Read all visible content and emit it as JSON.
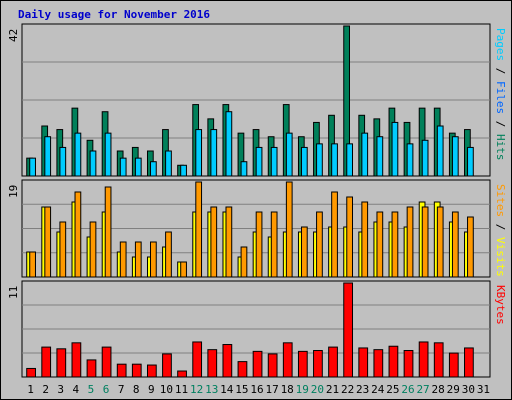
{
  "chart_data": {
    "type": "bar",
    "title": "Daily usage for November 2016",
    "categories": [
      "1",
      "2",
      "3",
      "4",
      "5",
      "6",
      "7",
      "8",
      "9",
      "10",
      "11",
      "12",
      "13",
      "14",
      "15",
      "16",
      "17",
      "18",
      "19",
      "20",
      "21",
      "22",
      "23",
      "24",
      "25",
      "26",
      "27",
      "28",
      "29",
      "30",
      "31"
    ],
    "weekend_days": [
      "5",
      "6",
      "12",
      "13",
      "19",
      "20",
      "26",
      "27"
    ],
    "colors": {
      "hits": "#00805a",
      "files": "#00ccff",
      "sites": "#ff9900",
      "visits": "#ffff00",
      "kbytes": "#ff0000",
      "title": "#0000cc",
      "weekend": "#008060",
      "weekday": "#000000"
    },
    "panels": [
      {
        "ymax_label": "42",
        "ylim": [
          0,
          42
        ],
        "legend": [
          {
            "text": "Pages",
            "color": "#00ccff"
          },
          {
            "text": " / ",
            "color": "#000000"
          },
          {
            "text": "Files",
            "color": "#0066ff"
          },
          {
            "text": " / ",
            "color": "#000000"
          },
          {
            "text": "Hits",
            "color": "#00805a"
          }
        ],
        "series": [
          {
            "key": "hits",
            "values": [
              5,
              14,
              13,
              19,
              10,
              18,
              7,
              8,
              7,
              13,
              3,
              20,
              16,
              20,
              12,
              13,
              11,
              20,
              11,
              15,
              17,
              42,
              17,
              16,
              19,
              15,
              19,
              19,
              12,
              13,
              0
            ]
          },
          {
            "key": "files",
            "values": [
              5,
              11,
              8,
              12,
              7,
              12,
              5,
              5,
              4,
              7,
              3,
              13,
              13,
              18,
              4,
              8,
              8,
              12,
              8,
              9,
              9,
              9,
              12,
              11,
              15,
              9,
              10,
              14,
              11,
              8,
              0
            ]
          }
        ]
      },
      {
        "ymax_label": "19",
        "ylim": [
          0,
          19
        ],
        "legend": [
          {
            "text": "Sites",
            "color": "#ff9900"
          },
          {
            "text": " / ",
            "color": "#000000"
          },
          {
            "text": "Visits",
            "color": "#ffff00"
          }
        ],
        "series": [
          {
            "key": "visits",
            "values": [
              5,
              14,
              9,
              15,
              8,
              13,
              5,
              4,
              4,
              6,
              3,
              13,
              13,
              13,
              4,
              9,
              8,
              9,
              9,
              9,
              10,
              10,
              9,
              11,
              11,
              10,
              15,
              15,
              11,
              9,
              0
            ]
          },
          {
            "key": "sites",
            "values": [
              5,
              14,
              11,
              17,
              11,
              18,
              7,
              7,
              7,
              9,
              3,
              19,
              14,
              14,
              6,
              13,
              13,
              19,
              10,
              13,
              17,
              16,
              15,
              13,
              13,
              14,
              14,
              14,
              13,
              12,
              0
            ]
          }
        ]
      },
      {
        "ymax_label": "11",
        "ylim": [
          0,
          11
        ],
        "legend": [
          {
            "text": "KBytes",
            "color": "#ff0000"
          }
        ],
        "series": [
          {
            "key": "kbytes",
            "values": [
              1.0,
              3.5,
              3.3,
              4.0,
              2.0,
              3.5,
              1.5,
              1.5,
              1.4,
              2.7,
              0.7,
              4.1,
              3.2,
              3.8,
              1.8,
              3.0,
              2.7,
              4.0,
              3.0,
              3.1,
              3.5,
              11.0,
              3.4,
              3.2,
              3.6,
              3.1,
              4.1,
              4.0,
              2.8,
              3.4,
              0
            ]
          }
        ]
      }
    ]
  }
}
